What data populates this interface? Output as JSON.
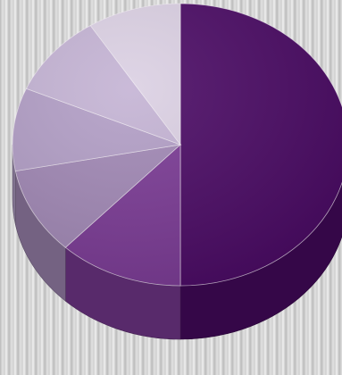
{
  "chart_data": {
    "type": "pie",
    "style": "3d",
    "title": "",
    "legend": "none",
    "start": "top",
    "direction": "clockwise",
    "slices": [
      {
        "value": 50,
        "color": "#4a0a64"
      },
      {
        "value": 12,
        "color": "#7a3a94"
      },
      {
        "value": 10,
        "color": "#a188b5"
      },
      {
        "value": 9.5,
        "color": "#b29ec6"
      },
      {
        "value": 9.5,
        "color": "#c4b3d4"
      },
      {
        "value": 9,
        "color": "#dbd0e3"
      }
    ]
  }
}
